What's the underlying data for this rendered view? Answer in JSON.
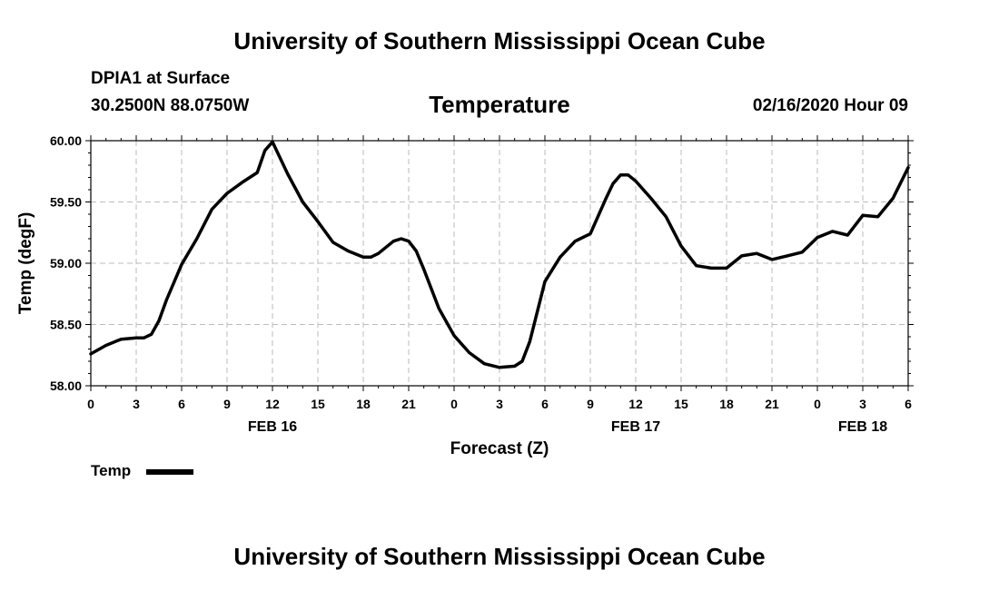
{
  "header": {
    "title": "University of Southern Mississippi Ocean Cube",
    "station": "DPIA1 at Surface",
    "coords": "30.2500N 88.0750W",
    "issued": "02/16/2020 Hour 09"
  },
  "footer": {
    "title": "University of Southern Mississippi Ocean Cube"
  },
  "chart_data": {
    "type": "line",
    "title": "Temperature",
    "xlabel": "Forecast (Z)",
    "ylabel": "Temp (degF)",
    "ylim": [
      58.0,
      60.0
    ],
    "yticks": [
      "58.00",
      "58.50",
      "59.00",
      "59.50",
      "60.00"
    ],
    "xlim": [
      0,
      54
    ],
    "xticks": [
      "0",
      "3",
      "6",
      "9",
      "12",
      "15",
      "18",
      "21",
      "0",
      "3",
      "6",
      "9",
      "12",
      "15",
      "18",
      "21",
      "0",
      "3",
      "6"
    ],
    "date_labels": [
      {
        "label": "FEB 16",
        "hour_offset": 12
      },
      {
        "label": "FEB 17",
        "hour_offset": 36
      },
      {
        "label": "FEB 18",
        "hour_offset": 51
      }
    ],
    "grid": true,
    "legend_position": "bottom-left",
    "series": [
      {
        "name": "Temp",
        "color": "#000000",
        "x": [
          0,
          1,
          2,
          3,
          3.5,
          4,
          4.5,
          5,
          6,
          7,
          8,
          9,
          10,
          11,
          11.5,
          12,
          13,
          14,
          15,
          16,
          17,
          18,
          18.5,
          19,
          20,
          20.5,
          21,
          21.5,
          22,
          23,
          24,
          25,
          26,
          27,
          28,
          28.5,
          29,
          30,
          31,
          32,
          33,
          34,
          34.5,
          35,
          35.5,
          36,
          37,
          38,
          39,
          40,
          41,
          42,
          43,
          44,
          45,
          46,
          47,
          48,
          49,
          50,
          51,
          52,
          53,
          54
        ],
        "y": [
          58.26,
          58.33,
          58.38,
          58.39,
          58.39,
          58.42,
          58.53,
          58.7,
          58.99,
          59.2,
          59.44,
          59.57,
          59.66,
          59.74,
          59.92,
          59.99,
          59.73,
          59.5,
          59.34,
          59.17,
          59.1,
          59.05,
          59.05,
          59.08,
          59.18,
          59.2,
          59.18,
          59.1,
          58.95,
          58.63,
          58.41,
          58.27,
          58.18,
          58.15,
          58.16,
          58.2,
          58.36,
          58.85,
          59.05,
          59.18,
          59.24,
          59.52,
          59.65,
          59.72,
          59.72,
          59.67,
          59.53,
          59.38,
          59.14,
          58.98,
          58.96,
          58.96,
          59.06,
          59.08,
          59.03,
          59.06,
          59.09,
          59.21,
          59.26,
          59.23,
          59.39,
          59.38,
          59.53,
          59.78
        ]
      }
    ]
  }
}
